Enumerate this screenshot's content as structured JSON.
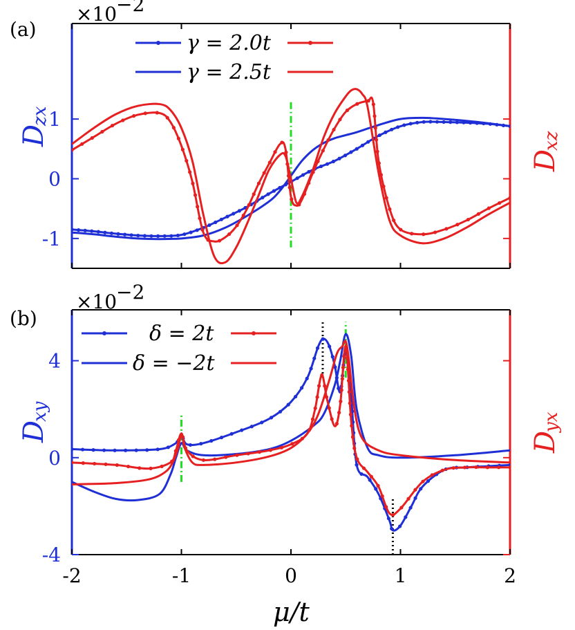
{
  "colors": {
    "blue": "#1f2fd6",
    "red": "#e62020",
    "green": "#22dd22",
    "black": "#000000"
  },
  "chart_data": [
    {
      "panel_label": "(a)",
      "type": "line",
      "x_range": [
        -2,
        2
      ],
      "x_ticks": [
        -2,
        -1,
        0,
        1,
        2
      ],
      "y_range": [
        -1.5,
        2.6
      ],
      "y_ticks": [
        -1,
        0,
        1
      ],
      "y_tick_labels": [
        "-1",
        "0",
        "1"
      ],
      "scale_text": "×10",
      "scale_exp": "−2",
      "ylabel_left": {
        "main": "D",
        "sub": "zx"
      },
      "ylabel_right": {
        "main": "D",
        "sub": "xz"
      },
      "legend": [
        {
          "text": "γ = 2.0t",
          "marker": "dots"
        },
        {
          "text": "γ = 2.5t",
          "marker": "none"
        }
      ],
      "series": [
        {
          "name": "D_zx γ=2.0t",
          "color": "blue",
          "marker": "dots",
          "x": [
            -2,
            -1.8,
            -1.6,
            -1.4,
            -1.2,
            -1,
            -0.8,
            -0.6,
            -0.4,
            -0.2,
            0,
            0.2,
            0.4,
            0.6,
            0.8,
            1,
            1.2,
            1.4,
            1.6,
            1.8,
            2
          ],
          "y": [
            -0.85,
            -0.88,
            -0.92,
            -0.95,
            -0.96,
            -0.94,
            -0.82,
            -0.65,
            -0.47,
            -0.25,
            -0.05,
            0.15,
            0.3,
            0.5,
            0.72,
            0.88,
            0.95,
            0.95,
            0.94,
            0.92,
            0.88
          ]
        },
        {
          "name": "D_zx γ=2.5t",
          "color": "blue",
          "marker": "none",
          "x": [
            -2,
            -1.8,
            -1.6,
            -1.4,
            -1.2,
            -1,
            -0.8,
            -0.6,
            -0.4,
            -0.2,
            -0.1,
            0,
            0.1,
            0.2,
            0.3,
            0.4,
            0.5,
            0.6,
            0.8,
            1,
            1.2,
            1.4,
            1.6,
            1.8,
            2
          ],
          "y": [
            -0.9,
            -0.93,
            -0.97,
            -1,
            -1.01,
            -1,
            -0.95,
            -0.82,
            -0.62,
            -0.38,
            -0.2,
            0.05,
            0.3,
            0.48,
            0.6,
            0.68,
            0.73,
            0.78,
            0.9,
            1,
            1.02,
            1,
            0.97,
            0.93,
            0.88
          ]
        },
        {
          "name": "D_xz γ=2.0t",
          "color": "red",
          "marker": "dots",
          "x": [
            -2,
            -1.8,
            -1.6,
            -1.4,
            -1.2,
            -1.1,
            -1,
            -0.9,
            -0.8,
            -0.7,
            -0.6,
            -0.5,
            -0.4,
            -0.3,
            -0.2,
            -0.1,
            -0.05,
            0,
            0.05,
            0.1,
            0.2,
            0.3,
            0.4,
            0.5,
            0.6,
            0.7,
            0.75,
            0.8,
            0.9,
            1,
            1.2,
            1.4,
            1.6,
            1.8,
            2
          ],
          "y": [
            0.48,
            0.7,
            0.92,
            1.07,
            1.1,
            0.95,
            0.55,
            -0.05,
            -0.9,
            -1.05,
            -0.98,
            -0.8,
            -0.5,
            -0.1,
            0.25,
            0.58,
            0.5,
            -0.3,
            -0.45,
            -0.35,
            0.1,
            0.5,
            0.85,
            1.12,
            1.25,
            1.3,
            1.28,
            0.3,
            -0.5,
            -0.85,
            -0.93,
            -0.85,
            -0.7,
            -0.5,
            -0.32
          ]
        },
        {
          "name": "D_xz γ=2.5t",
          "color": "red",
          "marker": "none",
          "x": [
            -2,
            -1.8,
            -1.6,
            -1.4,
            -1.2,
            -1.1,
            -1,
            -0.9,
            -0.8,
            -0.7,
            -0.6,
            -0.5,
            -0.4,
            -0.3,
            -0.2,
            -0.1,
            -0.05,
            0,
            0.05,
            0.1,
            0.2,
            0.3,
            0.4,
            0.5,
            0.55,
            0.6,
            0.65,
            0.7,
            0.8,
            0.9,
            1,
            1.2,
            1.4,
            1.6,
            1.8,
            2
          ],
          "y": [
            0.58,
            0.85,
            1.08,
            1.22,
            1.25,
            1.15,
            0.85,
            0.3,
            -0.6,
            -1.3,
            -1.4,
            -1.15,
            -0.75,
            -0.3,
            0.15,
            0.4,
            0.38,
            0.0,
            -0.4,
            -0.3,
            0.15,
            0.7,
            1.1,
            1.38,
            1.48,
            1.5,
            1.42,
            1.2,
            0.1,
            -0.7,
            -0.95,
            -1.08,
            -1,
            -0.82,
            -0.6,
            -0.4
          ]
        }
      ],
      "guides": [
        {
          "x": 0,
          "y_from": -1.15,
          "y_to": 1.3,
          "color": "green",
          "style": "dashdot"
        }
      ]
    },
    {
      "panel_label": "(b)",
      "type": "line",
      "x_range": [
        -2,
        2
      ],
      "x_ticks": [
        -2,
        -1,
        0,
        1,
        2
      ],
      "x_tick_labels": [
        "-2",
        "-1",
        "0",
        "1",
        "2"
      ],
      "xlabel": "μ/t",
      "y_range": [
        -4,
        6.1
      ],
      "y_ticks": [
        -4,
        0,
        4
      ],
      "y_tick_labels": [
        "-4",
        "0",
        "4"
      ],
      "scale_text": "×10",
      "scale_exp": "−2",
      "ylabel_left": {
        "main": "D",
        "sub": "xy"
      },
      "ylabel_right": {
        "main": "D",
        "sub": "yx"
      },
      "legend": [
        {
          "text": "δ = 2t",
          "marker": "dots"
        },
        {
          "text": "δ = −2t",
          "marker": "none"
        }
      ],
      "series": [
        {
          "name": "D_xy δ=2t",
          "color": "blue",
          "marker": "dots",
          "x": [
            -2,
            -1.6,
            -1.2,
            -1.05,
            -1,
            -0.95,
            -0.8,
            -0.5,
            -0.2,
            0,
            0.15,
            0.25,
            0.3,
            0.35,
            0.4,
            0.45,
            0.5,
            0.55,
            0.6,
            0.7,
            0.8,
            0.9,
            0.93,
            1,
            1.1,
            1.2,
            1.4,
            1.6,
            1.8,
            2
          ],
          "y": [
            0.35,
            0.3,
            0.35,
            0.6,
            0.9,
            0.55,
            0.6,
            1.05,
            1.6,
            2.3,
            3.3,
            4.6,
            4.9,
            4.6,
            3.8,
            2.7,
            4.4,
            2.5,
            -0.3,
            -0.8,
            -1.5,
            -2.6,
            -3.0,
            -2.8,
            -2.0,
            -1.2,
            -0.5,
            -0.4,
            -0.35,
            -0.3
          ]
        },
        {
          "name": "D_xy δ=−2t",
          "color": "blue",
          "marker": "none",
          "x": [
            -2,
            -1.8,
            -1.6,
            -1.4,
            -1.2,
            -1.1,
            -1.05,
            -1,
            -0.95,
            -0.8,
            -0.5,
            -0.2,
            0,
            0.2,
            0.3,
            0.4,
            0.45,
            0.5,
            0.55,
            0.6,
            0.7,
            0.8,
            1,
            1.5,
            2
          ],
          "y": [
            -1.0,
            -1.4,
            -1.7,
            -1.75,
            -1.5,
            -0.7,
            0,
            0.6,
            0.3,
            0.1,
            0.15,
            0.35,
            0.7,
            1.3,
            1.8,
            3.0,
            4.0,
            5.1,
            4.2,
            2.0,
            0.4,
            0.1,
            0.0,
            0.1,
            0.3
          ]
        },
        {
          "name": "D_yx δ=2t",
          "color": "red",
          "marker": "dots",
          "x": [
            -2,
            -1.6,
            -1.3,
            -1.1,
            -1.05,
            -1,
            -0.95,
            -0.8,
            -0.5,
            -0.2,
            0,
            0.15,
            0.22,
            0.28,
            0.33,
            0.4,
            0.45,
            0.5,
            0.55,
            0.6,
            0.7,
            0.8,
            0.9,
            1,
            1.2,
            1.4,
            1.6,
            1.8,
            2
          ],
          "y": [
            -0.2,
            -0.3,
            -0.45,
            -0.2,
            0.3,
            1.0,
            0.3,
            -0.1,
            0.1,
            0.3,
            0.55,
            1.0,
            2.0,
            3.4,
            2.4,
            1.3,
            2.2,
            4.6,
            1.5,
            0.0,
            -0.6,
            -1.2,
            -2.3,
            -2.1,
            -1.0,
            -0.5,
            -0.4,
            -0.4,
            -0.4
          ]
        },
        {
          "name": "D_yx δ=−2t",
          "color": "red",
          "marker": "none",
          "x": [
            -2,
            -1.6,
            -1.3,
            -1.15,
            -1.08,
            -1.03,
            -1,
            -0.97,
            -0.9,
            -0.8,
            -0.5,
            -0.2,
            0,
            0.15,
            0.25,
            0.35,
            0.42,
            0.47,
            0.5,
            0.53,
            0.58,
            0.65,
            0.8,
            1,
            1.5,
            2
          ],
          "y": [
            -1.1,
            -1.05,
            -0.9,
            -0.6,
            -0.2,
            0.4,
            1.0,
            0.4,
            -0.2,
            -0.3,
            -0.2,
            0.05,
            0.4,
            1.0,
            1.8,
            3.2,
            4.3,
            4.6,
            4.8,
            4.0,
            2.0,
            0.8,
            0.3,
            0.1,
            -0.1,
            -0.2
          ]
        }
      ],
      "guides": [
        {
          "x": -1,
          "y_from": -1.0,
          "y_to": 1.8,
          "color": "green",
          "style": "dashdot"
        },
        {
          "x": 0.5,
          "y_from": 3.3,
          "y_to": 5.6,
          "color": "green",
          "style": "dashdot"
        },
        {
          "x": 0.29,
          "y_from": 3.3,
          "y_to": 5.6,
          "color": "black",
          "style": "dotted"
        },
        {
          "x": 0.93,
          "y_from": -4.0,
          "y_to": -1.7,
          "color": "black",
          "style": "dotted"
        }
      ]
    }
  ]
}
